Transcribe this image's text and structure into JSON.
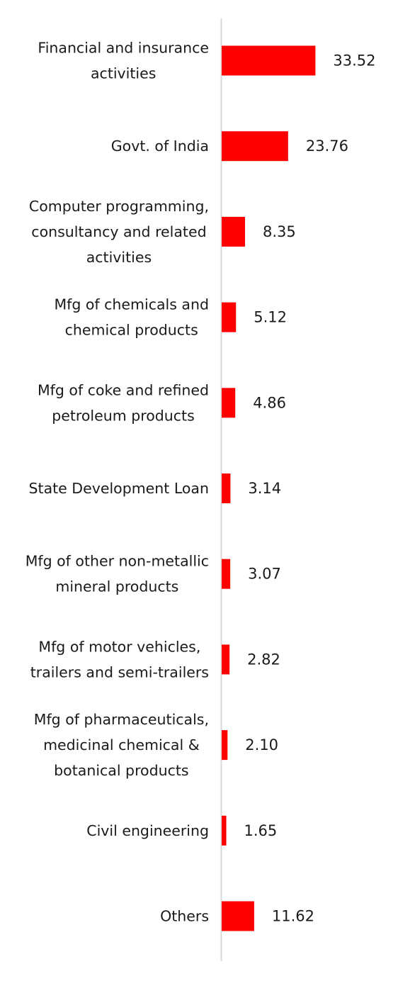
{
  "chart_data": {
    "type": "bar",
    "orientation": "horizontal",
    "categories": [
      "Financial and insurance activities",
      "Govt. of India",
      "Computer programming, consultancy and related activities",
      "Mfg of chemicals and chemical products",
      "Mfg of coke and refined petroleum products",
      "State Development Loan",
      "Mfg of other non-metallic mineral products",
      "Mfg of motor vehicles, trailers and semi-trailers",
      "Mfg of pharmaceuticals, medicinal chemical & botanical products",
      "Civil engineering",
      "Others"
    ],
    "category_lines": [
      [
        "Financial and insurance",
        "activities"
      ],
      [
        "Govt. of India"
      ],
      [
        "Computer programming,",
        "consultancy and related",
        "activities"
      ],
      [
        "Mfg of chemicals and",
        "chemical products"
      ],
      [
        "Mfg of coke and refined",
        "petroleum products"
      ],
      [
        "State Development Loan"
      ],
      [
        "Mfg of other non-metallic",
        "mineral products"
      ],
      [
        "Mfg of motor vehicles,",
        "trailers and semi-trailers"
      ],
      [
        "Mfg of pharmaceuticals,",
        "medicinal chemical &",
        "botanical products"
      ],
      [
        "Civil engineering"
      ],
      [
        "Others"
      ]
    ],
    "values": [
      33.52,
      23.76,
      8.35,
      5.12,
      4.86,
      3.14,
      3.07,
      2.82,
      2.1,
      1.65,
      11.62
    ],
    "value_labels": [
      "33.52",
      "23.76",
      "8.35",
      "5.12",
      "4.86",
      "3.14",
      "3.07",
      "2.82",
      "2.10",
      "1.65",
      "11.62"
    ],
    "bar_color": "#ff0000",
    "axis_color": "#d9d9d9",
    "grid": false,
    "legend": "none"
  }
}
